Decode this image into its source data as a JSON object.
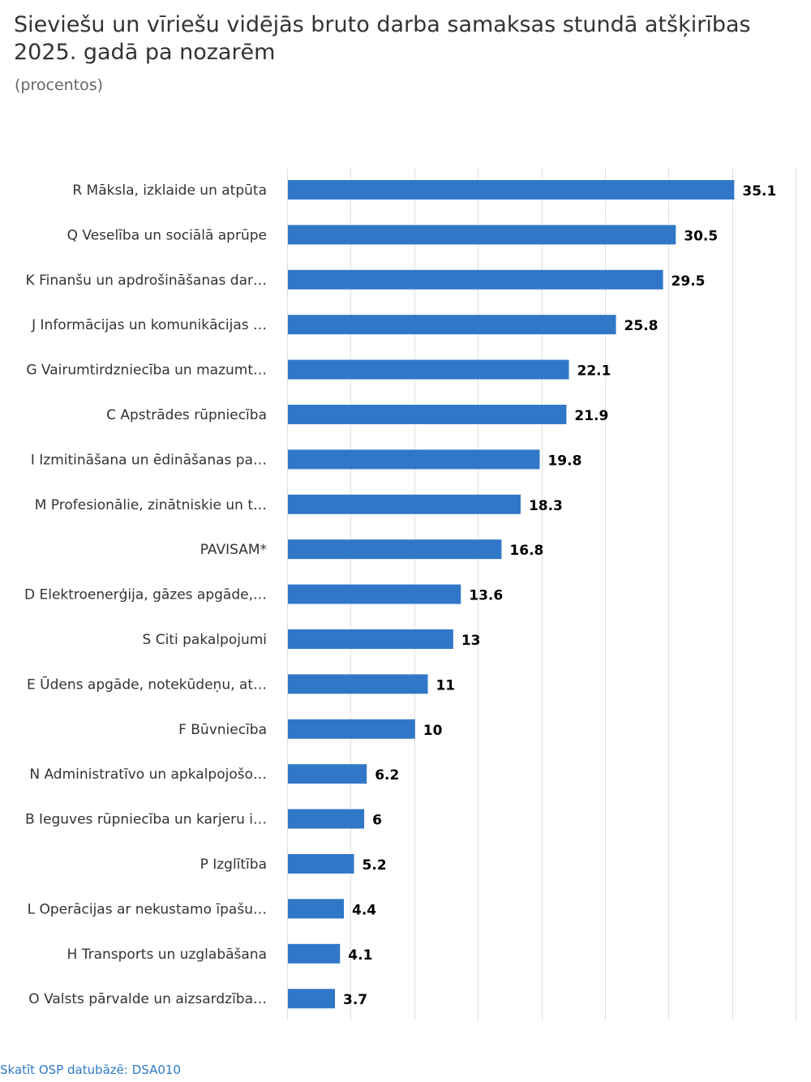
{
  "title": "Sieviešu un vīriešu vidējās bruto darba samaksas stundā atšķirības 2025. gadā pa nozarēm",
  "subtitle": "(procentos)",
  "footer_link": "Skatīt OSP datubāzē: DSA010",
  "colors": {
    "bar": "#3177c8",
    "grid": "#e0e0e0",
    "label": "#333333",
    "value": "#000000",
    "link": "#2f7ac8"
  },
  "chart_data": {
    "type": "bar",
    "orientation": "horizontal",
    "title": "Sieviešu un vīriešu vidējās bruto darba samaksas stundā atšķirības 2025. gadā pa nozarēm",
    "subtitle": "(procentos)",
    "categories": [
      "R Māksla, izklaide un atpūta",
      "Q Veselība un sociālā aprūpe",
      "K Finanšu un apdrošināšanas dar…",
      "J Informācijas un komunikācijas …",
      "G Vairumtirdzniecība un mazumt…",
      "C Apstrādes rūpniecība",
      "I Izmitināšana un ēdināšanas pa…",
      "M Profesionālie, zinātniskie un t…",
      "PAVISAM*",
      "D Elektroenerģija, gāzes apgāde,…",
      "S Citi pakalpojumi",
      "E Ūdens apgāde, notekūdeņu, at…",
      "F Būvniecība",
      "N Administratīvo un apkalpojošo…",
      "B Ieguves rūpniecība un karjeru i…",
      "P Izglītība",
      "L Operācijas ar nekustamo īpašu…",
      "H Transports un uzglabāšana",
      "O Valsts pārvalde un aizsardzība…"
    ],
    "values": [
      35.1,
      30.5,
      29.5,
      25.8,
      22.1,
      21.9,
      19.8,
      18.3,
      16.8,
      13.6,
      13,
      11,
      10,
      6.2,
      6,
      5.2,
      4.4,
      4.1,
      3.7
    ],
    "value_labels": [
      "35.1",
      "30.5",
      "29.5",
      "25.8",
      "22.1",
      "21.9",
      "19.8",
      "18.3",
      "16.8",
      "13.6",
      "13",
      "11",
      "10",
      "6.2",
      "6",
      "5.2",
      "4.4",
      "4.1",
      "3.7"
    ],
    "xlim": [
      0,
      40
    ],
    "x_grid_step": 5,
    "grid": true,
    "axis_labels_visible": false,
    "legend": "none"
  }
}
